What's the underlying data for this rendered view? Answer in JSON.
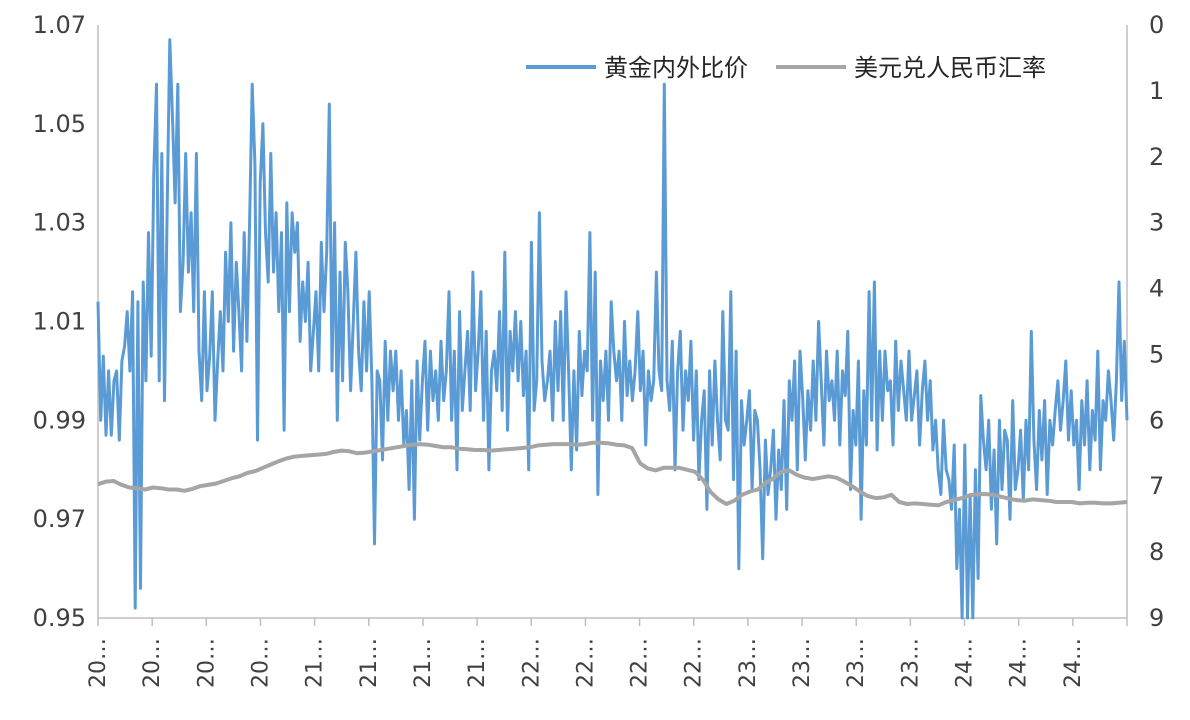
{
  "chart_data": {
    "type": "line",
    "title": "",
    "xlabel": "",
    "ylabel": "",
    "y2label": "",
    "grid": false,
    "legend_position": "top-right",
    "y_left": {
      "min": 0.95,
      "max": 1.07,
      "ticks": [
        "1.07",
        "1.05",
        "1.03",
        "1.01",
        "0.99",
        "0.97",
        "0.95"
      ]
    },
    "y_right": {
      "min": 0,
      "max": 9,
      "inverted": true,
      "ticks": [
        "0",
        "1",
        "2",
        "3",
        "4",
        "5",
        "6",
        "7",
        "8",
        "9"
      ]
    },
    "x_tick_labels": [
      "20…",
      "20…",
      "20…",
      "20…",
      "21…",
      "21…",
      "21…",
      "21…",
      "22…",
      "22…",
      "22…",
      "22…",
      "23…",
      "23…",
      "23…",
      "23…",
      "24…",
      "24…",
      "24…"
    ],
    "series": [
      {
        "name": "黄金内外比价",
        "axis": "left",
        "color": "#5b9bd5",
        "values": [
          1.014,
          0.99,
          1.003,
          0.987,
          1.0,
          0.987,
          0.998,
          1.0,
          0.986,
          1.002,
          1.005,
          1.012,
          1.0,
          1.016,
          0.952,
          1.014,
          0.956,
          1.018,
          0.998,
          1.028,
          1.003,
          1.04,
          1.058,
          0.998,
          1.044,
          0.994,
          1.032,
          1.067,
          1.052,
          1.034,
          1.058,
          1.012,
          1.022,
          1.044,
          1.02,
          1.032,
          1.012,
          1.044,
          1.004,
          0.994,
          1.016,
          0.996,
          1.003,
          1.016,
          0.99,
          1.002,
          1.012,
          1.0,
          1.024,
          1.01,
          1.03,
          1.004,
          1.022,
          1.012,
          1.0,
          1.028,
          1.006,
          1.03,
          1.058,
          1.042,
          0.986,
          1.038,
          1.05,
          1.028,
          1.018,
          1.044,
          1.02,
          1.032,
          1.012,
          1.028,
          0.988,
          1.034,
          1.012,
          1.032,
          1.024,
          1.03,
          1.006,
          1.018,
          1.01,
          1.022,
          1.0,
          1.008,
          1.016,
          1.0,
          1.026,
          1.012,
          1.024,
          1.054,
          1.0,
          1.03,
          0.99,
          1.02,
          0.998,
          1.026,
          1.016,
          0.996,
          1.01,
          1.024,
          1.004,
          0.996,
          1.014,
          1.0,
          1.016,
          0.998,
          0.965,
          1.0,
          0.998,
          0.982,
          1.006,
          0.99,
          1.004,
          0.996,
          1.004,
          0.99,
          1.0,
          0.985,
          0.992,
          0.976,
          0.998,
          0.97,
          1.002,
          0.986,
          0.998,
          1.006,
          0.988,
          1.004,
          0.994,
          1.0,
          0.99,
          1.006,
          0.994,
          1.0,
          1.016,
          0.99,
          1.004,
          0.98,
          1.012,
          0.992,
          1.0,
          1.008,
          0.992,
          1.02,
          0.996,
          1.004,
          1.016,
          0.99,
          1.008,
          0.98,
          1.0,
          1.004,
          0.996,
          1.012,
          0.992,
          1.024,
          0.988,
          1.008,
          1.0,
          1.012,
          0.998,
          1.01,
          0.995,
          1.004,
          0.98,
          1.026,
          0.992,
          0.998,
          1.032,
          1.002,
          0.994,
          0.998,
          1.004,
          0.99,
          1.01,
          0.996,
          1.012,
          0.99,
          1.016,
          1.0,
          0.98,
          1.0,
          0.984,
          1.008,
          0.995,
          1.004,
          1.0,
          1.028,
          0.99,
          1.02,
          0.975,
          1.002,
          0.994,
          1.004,
          0.99,
          1.014,
          1.004,
          0.998,
          1.004,
          0.99,
          1.01,
          0.995,
          1.002,
          0.994,
          1.0,
          1.012,
          0.996,
          1.004,
          0.985,
          1.0,
          0.994,
          0.998,
          1.02,
          1.0,
          0.996,
          1.058,
          0.998,
          0.992,
          1.006,
          0.98,
          1.0,
          1.008,
          0.988,
          1.0,
          0.994,
          1.006,
          0.986,
          1.0,
          0.978,
          0.99,
          0.996,
          0.972,
          1.0,
          0.985,
          1.002,
          0.99,
          0.982,
          1.012,
          0.99,
          0.988,
          1.016,
          0.978,
          1.004,
          0.96,
          0.994,
          0.985,
          0.99,
          0.996,
          0.976,
          0.992,
          0.99,
          0.98,
          0.962,
          0.986,
          0.975,
          0.98,
          0.988,
          0.97,
          0.984,
          0.976,
          0.994,
          0.972,
          0.998,
          0.99,
          1.002,
          0.98,
          1.004,
          0.995,
          0.982,
          0.996,
          0.988,
          1.002,
          0.99,
          1.01,
          0.998,
          0.985,
          1.004,
          0.994,
          0.998,
          0.99,
          1.004,
          0.985,
          1.0,
          0.995,
          1.008,
          0.976,
          0.992,
          0.985,
          1.002,
          0.97,
          0.996,
          0.985,
          1.016,
          0.99,
          1.018,
          0.984,
          1.004,
          0.99,
          1.004,
          0.996,
          0.998,
          0.985,
          1.006,
          0.992,
          1.002,
          0.996,
          0.99,
          1.004,
          0.99,
          0.995,
          1.0,
          0.985,
          0.996,
          1.002,
          0.99,
          0.998,
          0.984,
          0.99,
          0.98,
          0.975,
          0.99,
          0.98,
          0.978,
          0.972,
          0.985,
          0.96,
          0.972,
          0.95,
          0.985,
          0.95,
          0.975,
          0.95,
          0.98,
          0.958,
          0.995,
          0.986,
          0.98,
          0.99,
          0.972,
          0.984,
          0.965,
          0.99,
          0.976,
          0.988,
          0.986,
          0.97,
          0.994,
          0.976,
          0.98,
          0.988,
          0.974,
          0.99,
          0.98,
          1.008,
          0.986,
          0.976,
          0.992,
          0.982,
          0.994,
          0.975,
          0.99,
          0.985,
          0.992,
          0.998,
          0.988,
          0.994,
          1.002,
          0.986,
          0.996,
          0.985,
          0.99,
          0.976,
          0.994,
          0.985,
          0.998,
          0.98,
          0.992,
          0.986,
          1.004,
          0.98,
          0.994,
          0.99,
          1.0,
          0.994,
          0.986,
          0.998,
          1.018,
          0.994,
          1.006,
          0.99
        ]
      },
      {
        "name": "美元兑人民币汇率",
        "axis": "right",
        "color": "#a5a5a5",
        "values": [
          6.97,
          6.93,
          6.92,
          6.98,
          7.02,
          7.03,
          7.05,
          7.02,
          7.03,
          7.05,
          7.05,
          7.07,
          7.04,
          7.0,
          6.98,
          6.96,
          6.92,
          6.88,
          6.85,
          6.8,
          6.77,
          6.72,
          6.67,
          6.62,
          6.58,
          6.55,
          6.54,
          6.53,
          6.52,
          6.51,
          6.48,
          6.46,
          6.47,
          6.5,
          6.49,
          6.47,
          6.45,
          6.43,
          6.41,
          6.39,
          6.37,
          6.36,
          6.37,
          6.39,
          6.41,
          6.41,
          6.43,
          6.44,
          6.45,
          6.45,
          6.46,
          6.45,
          6.44,
          6.43,
          6.42,
          6.41,
          6.38,
          6.37,
          6.36,
          6.36,
          6.36,
          6.37,
          6.36,
          6.34,
          6.34,
          6.35,
          6.37,
          6.38,
          6.42,
          6.65,
          6.73,
          6.76,
          6.72,
          6.72,
          6.72,
          6.75,
          6.78,
          6.9,
          7.09,
          7.2,
          7.27,
          7.22,
          7.13,
          7.08,
          7.05,
          6.95,
          6.88,
          6.78,
          6.76,
          6.83,
          6.87,
          6.89,
          6.87,
          6.85,
          6.87,
          6.93,
          7.0,
          7.08,
          7.15,
          7.18,
          7.17,
          7.13,
          7.24,
          7.27,
          7.26,
          7.27,
          7.28,
          7.29,
          7.24,
          7.21,
          7.18,
          7.14,
          7.12,
          7.12,
          7.13,
          7.16,
          7.19,
          7.21,
          7.22,
          7.2,
          7.21,
          7.22,
          7.24,
          7.24,
          7.24,
          7.26,
          7.25,
          7.25,
          7.26,
          7.26,
          7.25,
          7.24
        ]
      }
    ]
  }
}
